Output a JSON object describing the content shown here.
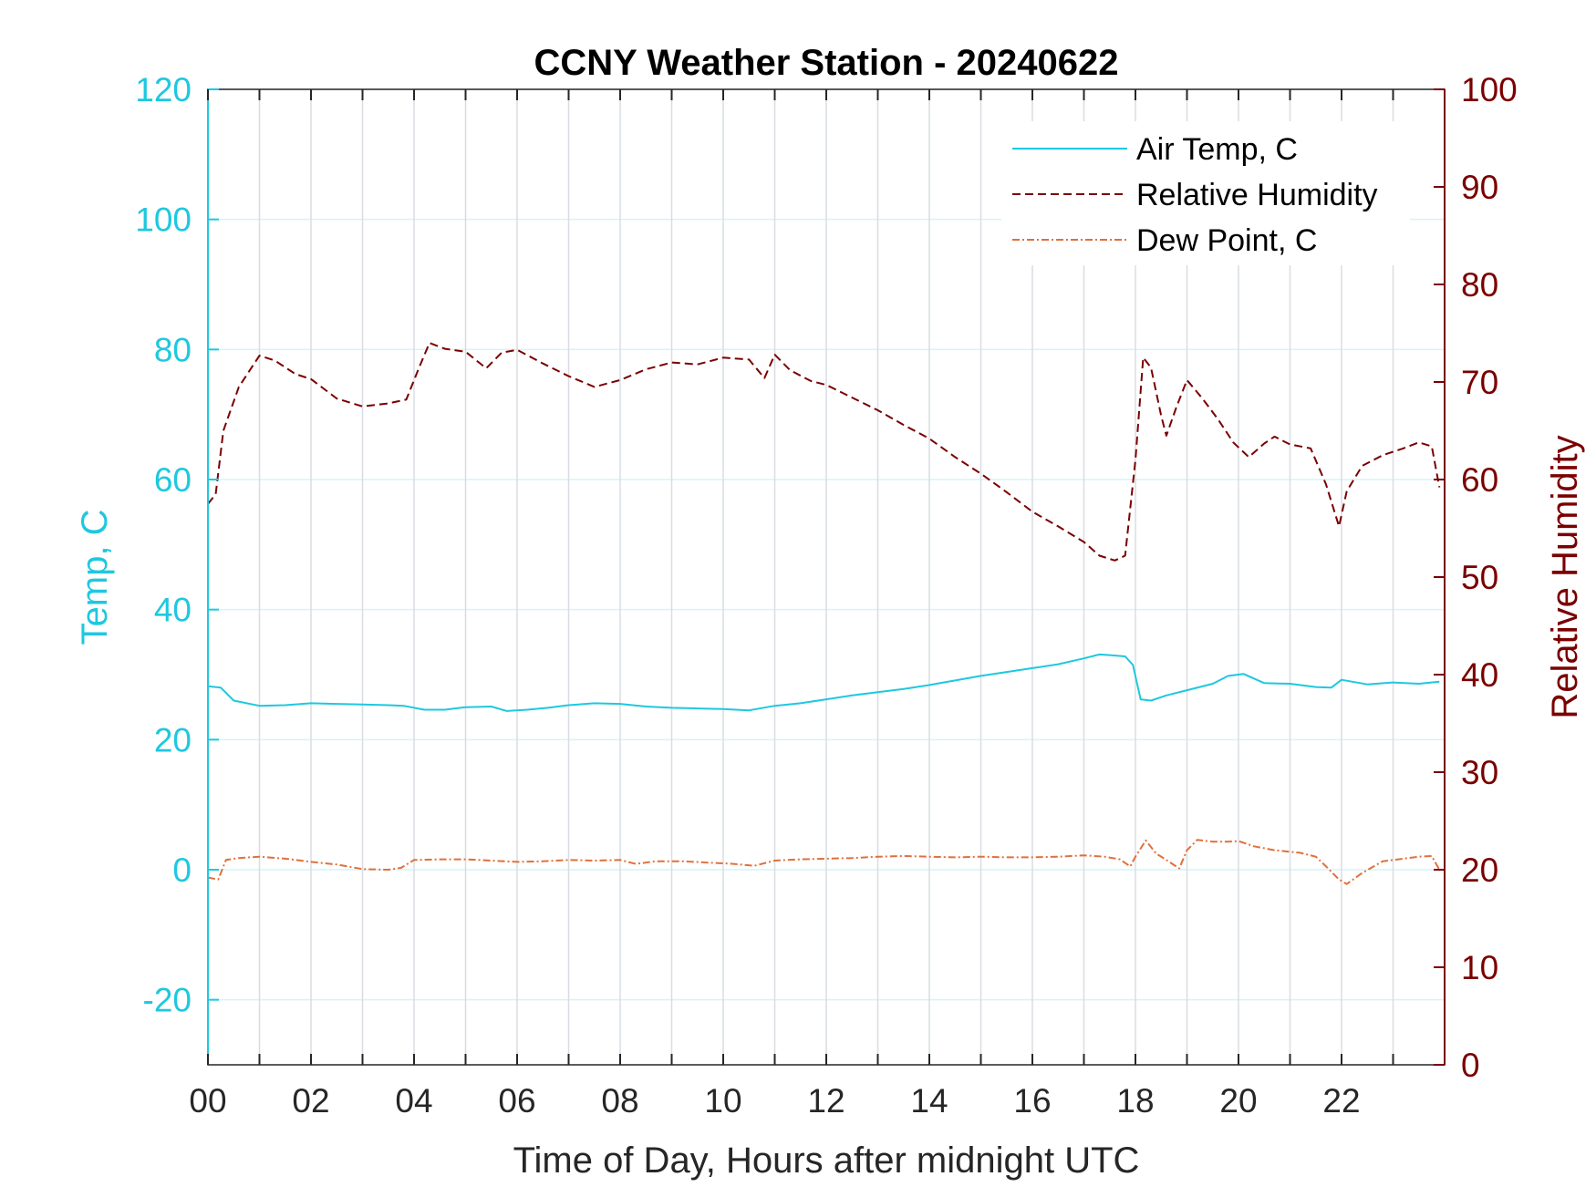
{
  "chart_data": {
    "type": "line",
    "title": "CCNY Weather Station - 20240622",
    "xlabel": "Time of Day, Hours after midnight UTC",
    "ylabel_left": "Temp, C",
    "ylabel_right": "Relative Humidity",
    "xlim": [
      0,
      24
    ],
    "ylim_left": [
      -30,
      120
    ],
    "ylim_right": [
      0,
      100
    ],
    "x_ticks": [
      0,
      2,
      4,
      6,
      8,
      10,
      12,
      14,
      16,
      18,
      20,
      22
    ],
    "x_tick_labels": [
      "00",
      "02",
      "04",
      "06",
      "08",
      "10",
      "12",
      "14",
      "16",
      "18",
      "20",
      "22"
    ],
    "y_ticks_left": [
      -20,
      0,
      20,
      40,
      60,
      80,
      100,
      120
    ],
    "y_ticks_right": [
      0,
      10,
      20,
      30,
      40,
      50,
      60,
      70,
      80,
      90,
      100
    ],
    "grid": true,
    "legend_position": "top-right",
    "colors": {
      "air_temp": "#1ec8df",
      "relative_humidity": "#7a0000",
      "dew_point": "#e0703c",
      "axis_left": "#1ec8df",
      "axis_right": "#7a0000",
      "grid": "#d9dde3",
      "grid_left": "#d6f3f8"
    },
    "series": [
      {
        "name": "Air Temp, C",
        "axis": "left",
        "style": "solid",
        "x": [
          0,
          0.25,
          0.5,
          1,
          1.5,
          2,
          2.5,
          3,
          3.5,
          3.8,
          4.2,
          4.6,
          5,
          5.5,
          5.8,
          6.2,
          6.6,
          7,
          7.5,
          8,
          8.5,
          9,
          9.5,
          10,
          10.5,
          11,
          11.5,
          12,
          12.5,
          13,
          13.5,
          14,
          14.5,
          15,
          15.5,
          16,
          16.5,
          17,
          17.3,
          17.5,
          17.8,
          17.95,
          18.1,
          18.3,
          18.6,
          19,
          19.5,
          19.8,
          20.1,
          20.5,
          21,
          21.5,
          21.8,
          22,
          22.5,
          23,
          23.5,
          23.9
        ],
        "y": [
          28.2,
          28.0,
          26.0,
          25.2,
          25.3,
          25.6,
          25.5,
          25.4,
          25.3,
          25.2,
          24.6,
          24.6,
          25.0,
          25.1,
          24.4,
          24.6,
          24.9,
          25.3,
          25.6,
          25.5,
          25.1,
          24.9,
          24.8,
          24.7,
          24.5,
          25.2,
          25.6,
          26.2,
          26.8,
          27.3,
          27.8,
          28.4,
          29.1,
          29.8,
          30.4,
          31.0,
          31.6,
          32.5,
          33.1,
          33.0,
          32.8,
          31.5,
          26.2,
          26.0,
          26.8,
          27.6,
          28.6,
          29.8,
          30.1,
          28.7,
          28.6,
          28.1,
          28.0,
          29.2,
          28.5,
          28.8,
          28.6,
          28.9
        ]
      },
      {
        "name": "Relative Humidity",
        "axis": "right",
        "style": "dashed",
        "x": [
          0,
          0.15,
          0.3,
          0.6,
          1,
          1.3,
          1.7,
          2,
          2.5,
          3,
          3.5,
          3.85,
          4.1,
          4.3,
          4.6,
          5,
          5.4,
          5.7,
          6,
          6.5,
          7,
          7.5,
          8,
          8.5,
          9,
          9.5,
          10,
          10.5,
          10.8,
          11,
          11.3,
          11.7,
          12,
          12.5,
          13,
          13.5,
          14,
          14.5,
          15,
          15.5,
          16,
          16.5,
          17,
          17.3,
          17.6,
          17.8,
          18,
          18.15,
          18.3,
          18.5,
          18.6,
          18.8,
          19,
          19.3,
          19.6,
          19.9,
          20.2,
          20.5,
          20.7,
          21,
          21.4,
          21.7,
          21.95,
          22.1,
          22.4,
          22.8,
          23.2,
          23.5,
          23.75,
          23.9
        ],
        "y": [
          57.5,
          58.5,
          65,
          69.5,
          72.7,
          72.2,
          70.8,
          70.3,
          68.3,
          67.5,
          67.8,
          68.2,
          71.5,
          74,
          73.4,
          73.1,
          71.4,
          73,
          73.3,
          71.9,
          70.6,
          69.5,
          70.2,
          71.3,
          72,
          71.8,
          72.5,
          72.3,
          70.4,
          72.8,
          71.2,
          70.1,
          69.7,
          68.4,
          67.1,
          65.6,
          64.2,
          62.3,
          60.6,
          58.7,
          56.7,
          55.2,
          53.6,
          52.2,
          51.7,
          52.2,
          62,
          72.5,
          71.5,
          66.5,
          64.5,
          67.5,
          70.2,
          68.3,
          66.2,
          63.8,
          62.3,
          63.7,
          64.4,
          63.6,
          63.2,
          59.5,
          55.2,
          58.8,
          61.4,
          62.5,
          63.2,
          63.8,
          63.4,
          59.2
        ]
      },
      {
        "name": "Dew Point, C",
        "axis": "left",
        "style": "dashdot",
        "x": [
          0,
          0.2,
          0.35,
          0.6,
          1,
          1.5,
          2,
          2.5,
          3,
          3.5,
          3.75,
          4,
          4.5,
          5,
          5.5,
          6,
          6.5,
          7,
          7.5,
          8,
          8.3,
          8.7,
          9.2,
          9.7,
          10.2,
          10.6,
          11,
          11.5,
          12,
          12.5,
          13,
          13.5,
          14,
          14.5,
          15,
          15.5,
          16,
          16.5,
          17,
          17.4,
          17.7,
          17.9,
          18,
          18.2,
          18.4,
          18.6,
          18.85,
          19,
          19.2,
          19.5,
          19.8,
          20,
          20.3,
          20.7,
          21.2,
          21.5,
          21.7,
          21.95,
          22.1,
          22.4,
          22.8,
          23.1,
          23.5,
          23.75,
          23.9
        ],
        "y": [
          -1.2,
          -1.5,
          1.5,
          1.8,
          2.0,
          1.7,
          1.2,
          0.8,
          0.1,
          0.0,
          0.3,
          1.5,
          1.6,
          1.6,
          1.4,
          1.2,
          1.3,
          1.5,
          1.4,
          1.5,
          0.9,
          1.3,
          1.3,
          1.1,
          0.9,
          0.6,
          1.4,
          1.6,
          1.7,
          1.8,
          2.0,
          2.1,
          2.0,
          1.9,
          2.0,
          1.9,
          1.9,
          2.0,
          2.2,
          2.0,
          1.6,
          0.5,
          2.0,
          4.5,
          2.5,
          1.5,
          0.2,
          3.0,
          4.6,
          4.3,
          4.3,
          4.4,
          3.6,
          3.0,
          2.6,
          2.0,
          0.5,
          -1.5,
          -2.2,
          -0.5,
          1.3,
          1.6,
          2.0,
          2.1,
          0.0
        ]
      }
    ]
  }
}
